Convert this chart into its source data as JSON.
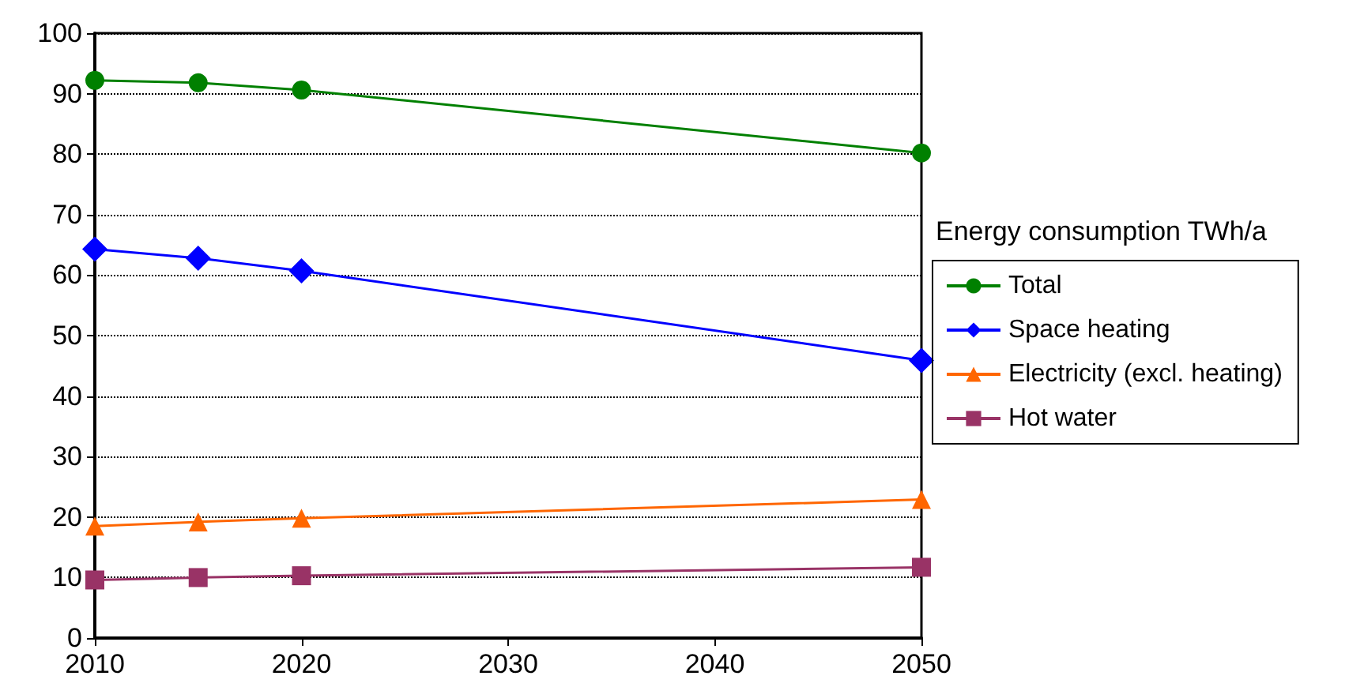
{
  "chart_data": {
    "type": "line",
    "x": [
      2010,
      2015,
      2020,
      2050
    ],
    "series": [
      {
        "name": "Total",
        "color": "#008000",
        "marker": "circle",
        "values": [
          92.2,
          91.8,
          90.6,
          80.2
        ]
      },
      {
        "name": "Space heating",
        "color": "#0000ff",
        "marker": "diamond",
        "values": [
          64.3,
          62.8,
          60.7,
          45.9
        ]
      },
      {
        "name": "Electricity (excl. heating)",
        "color": "#ff6600",
        "marker": "triangle",
        "values": [
          18.5,
          19.2,
          19.8,
          22.9
        ]
      },
      {
        "name": "Hot water",
        "color": "#993366",
        "marker": "square",
        "values": [
          9.6,
          10.0,
          10.3,
          11.7
        ]
      }
    ],
    "legend_title": "Energy consumption TWh/a",
    "legend": "right",
    "xlim": [
      2010,
      2050
    ],
    "xticks": [
      2010,
      2020,
      2030,
      2040,
      2050
    ],
    "ylim": [
      0,
      100
    ],
    "yticks": [
      0,
      10,
      20,
      30,
      40,
      50,
      60,
      70,
      80,
      90,
      100
    ],
    "grid": "y",
    "line_style": "solid"
  }
}
